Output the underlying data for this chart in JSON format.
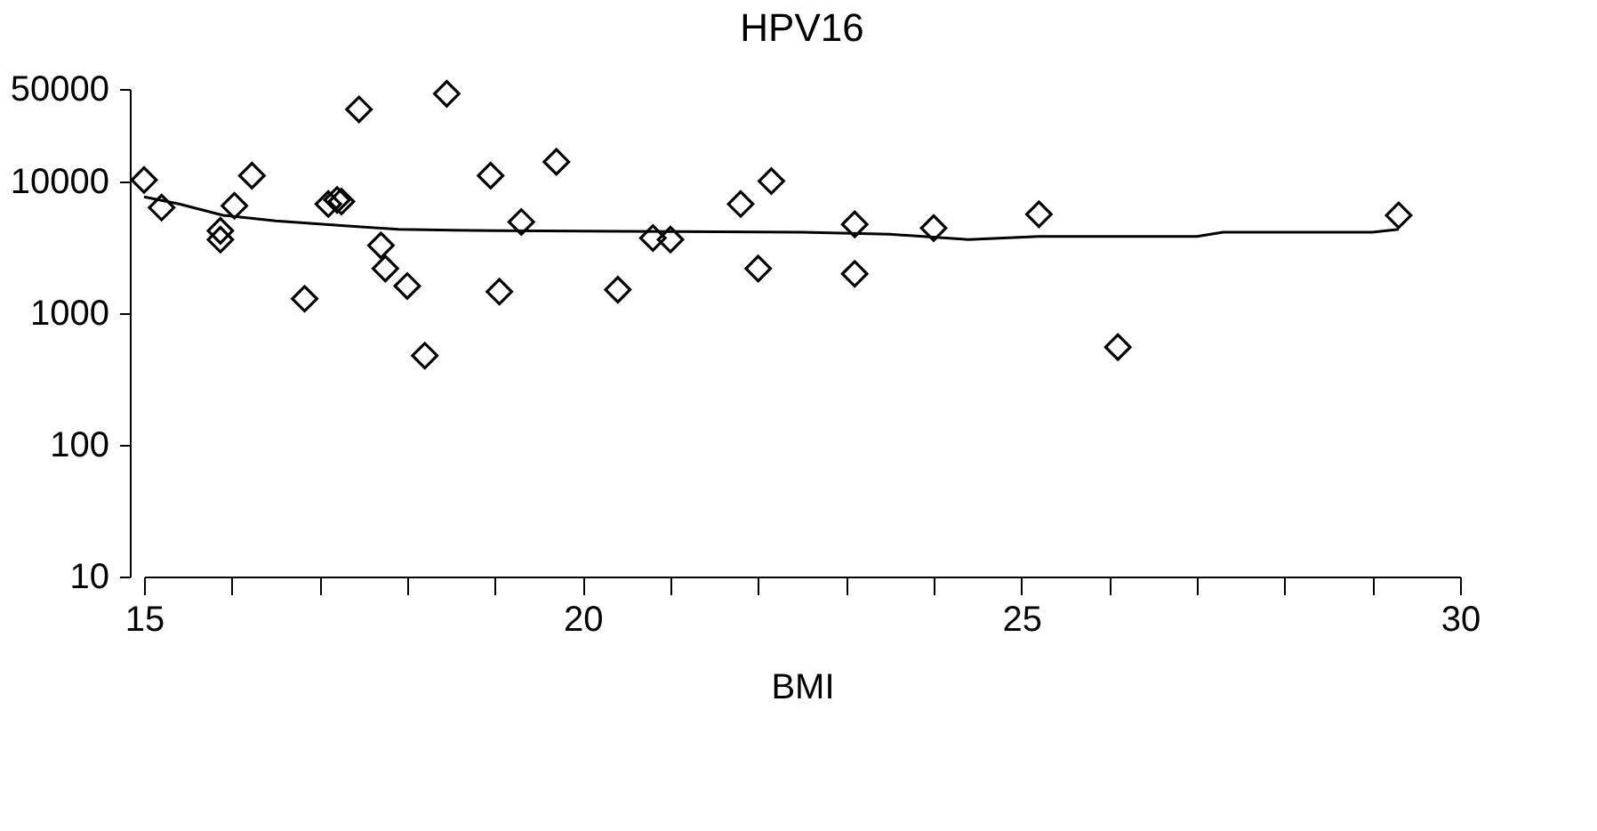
{
  "chart_data": {
    "type": "scatter",
    "title": "HPV16",
    "xlabel": "BMI",
    "xlim": [
      15,
      30
    ],
    "ylim": [
      10,
      50000
    ],
    "log": "y",
    "grid": false,
    "legend": false,
    "marker": "diamond",
    "xticks": [
      15,
      {
        "value": 16,
        "label": null
      },
      {
        "value": 17,
        "label": null
      },
      {
        "value": 18,
        "label": null
      },
      {
        "value": 19,
        "label": null
      },
      20,
      {
        "value": 21,
        "label": null
      },
      {
        "value": 22,
        "label": null
      },
      {
        "value": 23,
        "label": null
      },
      {
        "value": 24,
        "label": null
      },
      25,
      {
        "value": 26,
        "label": null
      },
      {
        "value": 27,
        "label": null
      },
      {
        "value": 28,
        "label": null
      },
      {
        "value": 29,
        "label": null
      },
      30
    ],
    "yticks": [
      10,
      100,
      1000,
      10000,
      50000
    ],
    "series": [
      {
        "color": "#000000",
        "x": [
          15.0,
          15.2,
          15.87,
          15.87,
          16.03,
          16.23,
          16.83,
          17.1,
          17.2,
          17.25,
          17.45,
          17.7,
          17.75,
          18.0,
          18.2,
          18.45,
          18.95,
          19.05,
          19.3,
          19.7,
          20.4,
          20.8,
          21.0,
          21.8,
          22.15,
          22.0,
          23.1,
          23.1,
          24.0,
          25.2,
          26.1,
          29.3
        ],
        "values": [
          10200,
          6300,
          4200,
          3600,
          6500,
          11000,
          1280,
          6700,
          7200,
          7000,
          35000,
          3250,
          2170,
          1600,
          474,
          46000,
          11000,
          1450,
          4900,
          14000,
          1500,
          3700,
          3600,
          6700,
          10000,
          2170,
          4700,
          1980,
          4400,
          5600,
          550,
          5500
        ]
      },
      {
        "type": "line",
        "color": "#000000",
        "marker": "none",
        "line_style": "solid",
        "x": [
          15.0,
          15.4,
          15.9,
          16.5,
          17.25,
          17.9,
          19.0,
          21.0,
          22.5,
          23.5,
          24.4,
          25.2,
          27.0,
          27.3,
          29.0,
          29.3
        ],
        "values": [
          7600,
          6700,
          5500,
          5000,
          4600,
          4300,
          4200,
          4150,
          4100,
          3950,
          3600,
          3800,
          3800,
          4100,
          4100,
          4300
        ]
      }
    ]
  }
}
